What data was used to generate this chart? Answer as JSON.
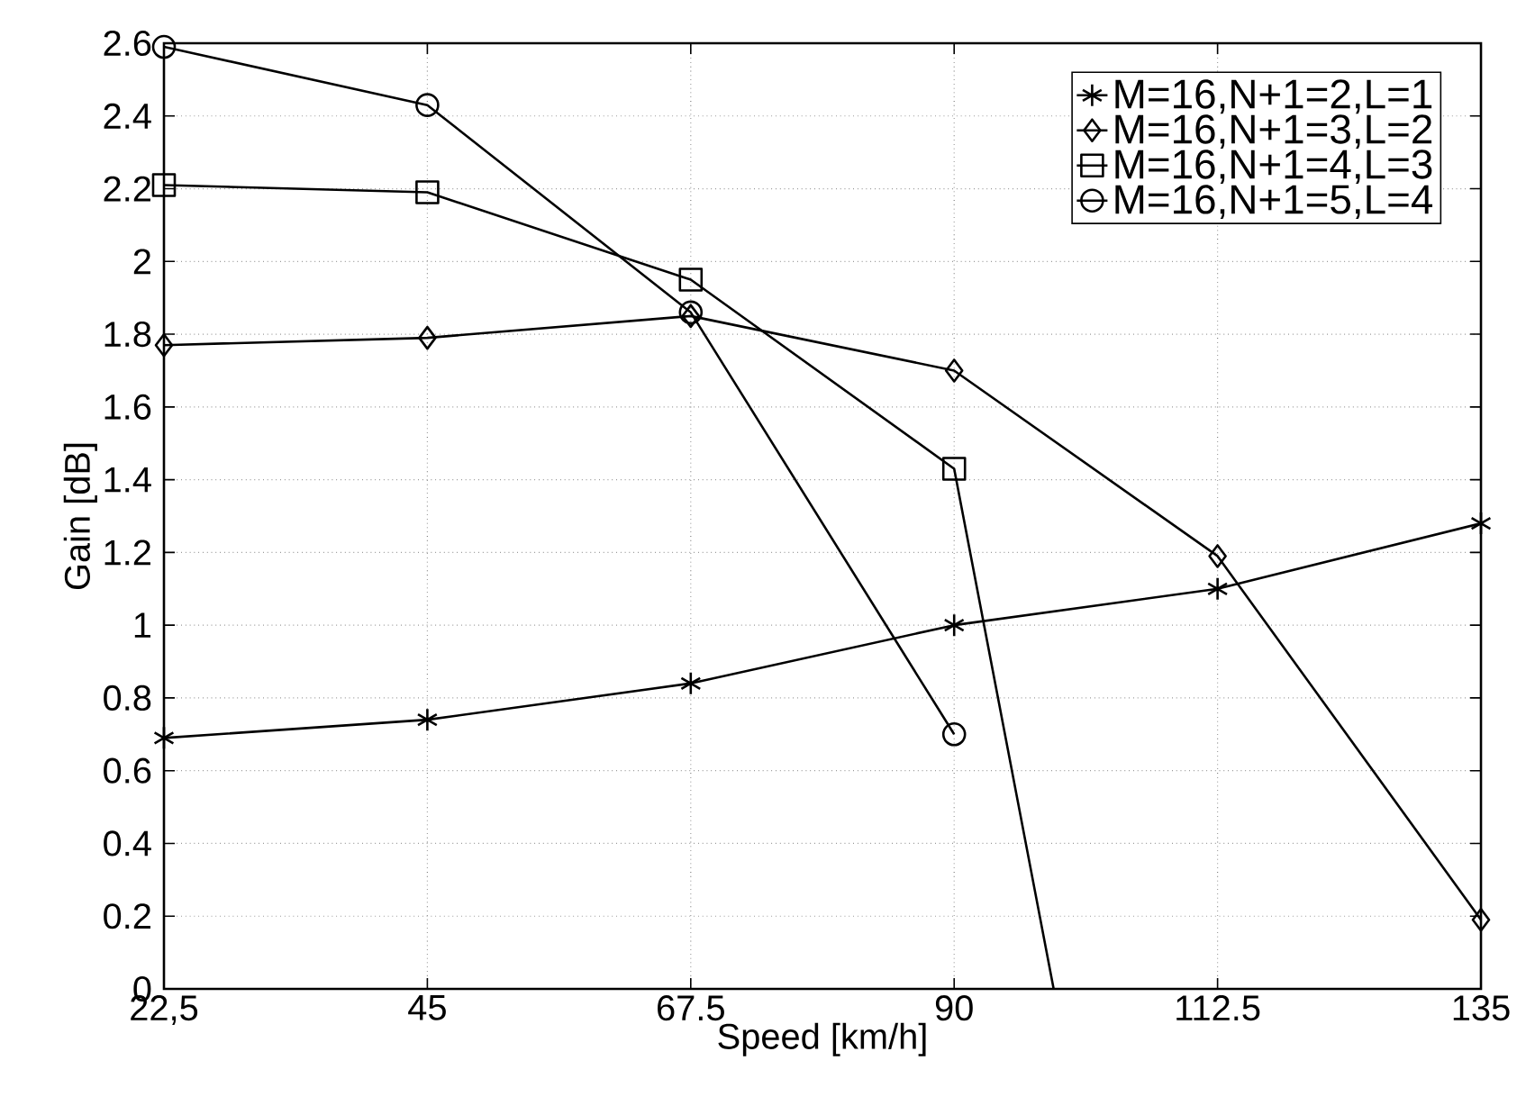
{
  "chart_data": {
    "type": "line",
    "xlabel": "Speed [km/h]",
    "ylabel": "Gain [dB]",
    "x": [
      22.5,
      45,
      67.5,
      90,
      112.5,
      135
    ],
    "series": [
      {
        "name": "M=16,N+1=2,L=1",
        "color": "#000000",
        "marker": "cross",
        "values": [
          0.69,
          0.74,
          0.84,
          1.0,
          1.1,
          1.28
        ]
      },
      {
        "name": "M=16,N+1=3,L=2",
        "color": "#000000",
        "marker": "diamond",
        "values": [
          1.77,
          1.79,
          1.85,
          1.7,
          1.19,
          0.19
        ]
      },
      {
        "name": "M=16,N+1=4,L=3",
        "color": "#000000",
        "marker": "square",
        "x": [
          22.5,
          45,
          67.5,
          90,
          98.5
        ],
        "values": [
          2.21,
          2.19,
          1.95,
          1.43,
          0
        ]
      },
      {
        "name": "M=16,N+1=5,L=4",
        "color": "#000000",
        "marker": "circle",
        "values": [
          2.59,
          2.43,
          1.86,
          0.7,
          null,
          null
        ]
      }
    ],
    "xlim": [
      22.5,
      135
    ],
    "ylim": [
      0,
      2.6
    ],
    "xticks": [
      {
        "value": 22.5,
        "label": "22,5"
      },
      45,
      67.5,
      90,
      112.5,
      135
    ],
    "yticks": [
      0,
      0.2,
      0.4,
      0.6,
      0.8,
      1,
      1.2,
      1.4,
      1.6,
      1.8,
      2,
      2.2,
      2.4,
      2.6
    ],
    "grid": true,
    "legend": "top right",
    "line_style": "solid"
  }
}
